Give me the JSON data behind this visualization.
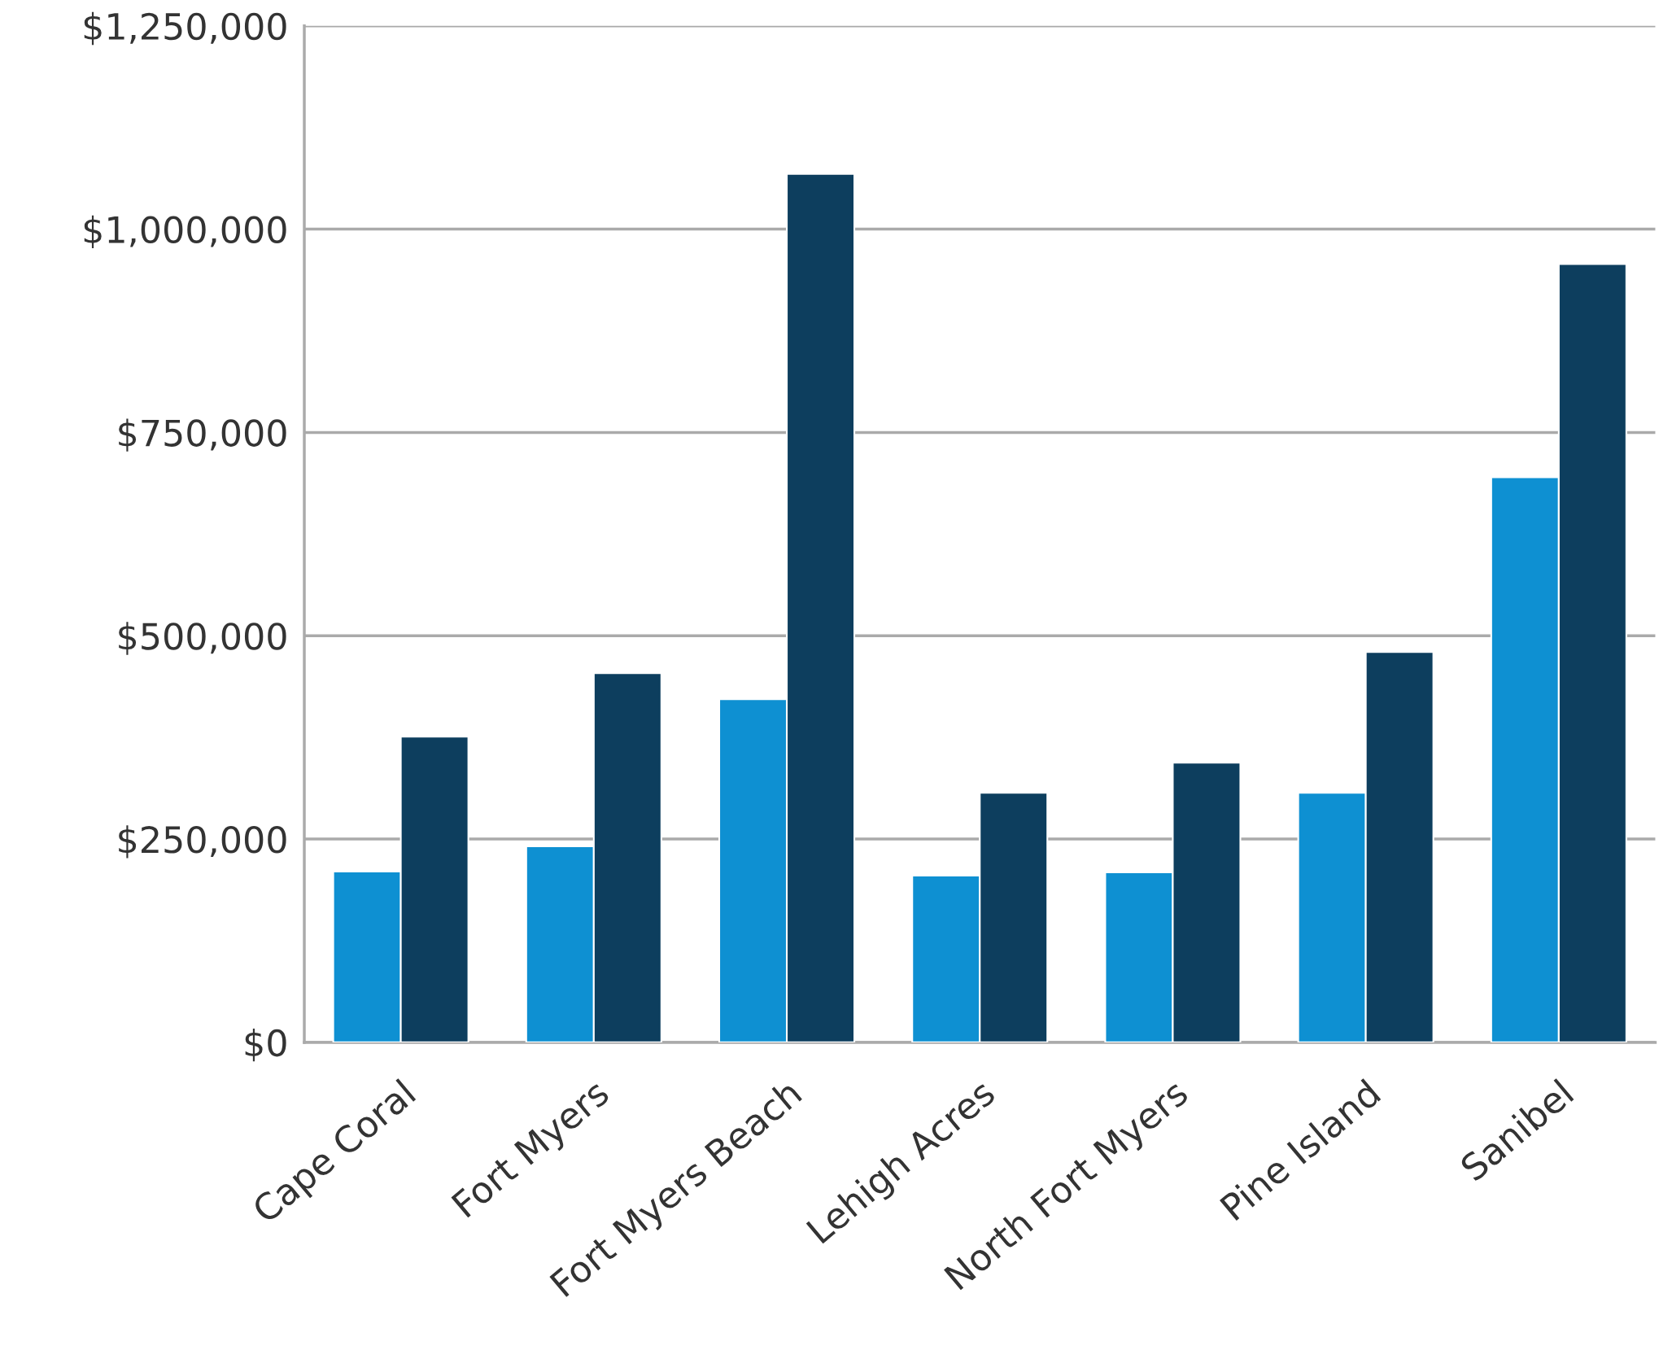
{
  "chart_data": {
    "type": "bar",
    "categories": [
      "Cape Coral",
      "Fort Myers",
      "Fort Myers Beach",
      "Lehigh Acres",
      "North Fort Myers",
      "Pine Island",
      "Sanibel"
    ],
    "series": [
      {
        "color": "#0e90d2",
        "values": [
          210000,
          241000,
          422000,
          205000,
          209000,
          307000,
          695000
        ]
      },
      {
        "color": "#0d3e5e",
        "values": [
          376000,
          454000,
          1068000,
          307000,
          344000,
          480000,
          957000
        ]
      }
    ],
    "ylim": [
      0,
      1250000
    ],
    "yticks": [
      {
        "value": 0,
        "label": "$0"
      },
      {
        "value": 250000,
        "label": "$250,000"
      },
      {
        "value": 500000,
        "label": "$500,000"
      },
      {
        "value": 750000,
        "label": "$750,000"
      },
      {
        "value": 1000000,
        "label": "$1,000,000"
      },
      {
        "value": 1250000,
        "label": "$1,250,000"
      }
    ],
    "grid": "y"
  }
}
